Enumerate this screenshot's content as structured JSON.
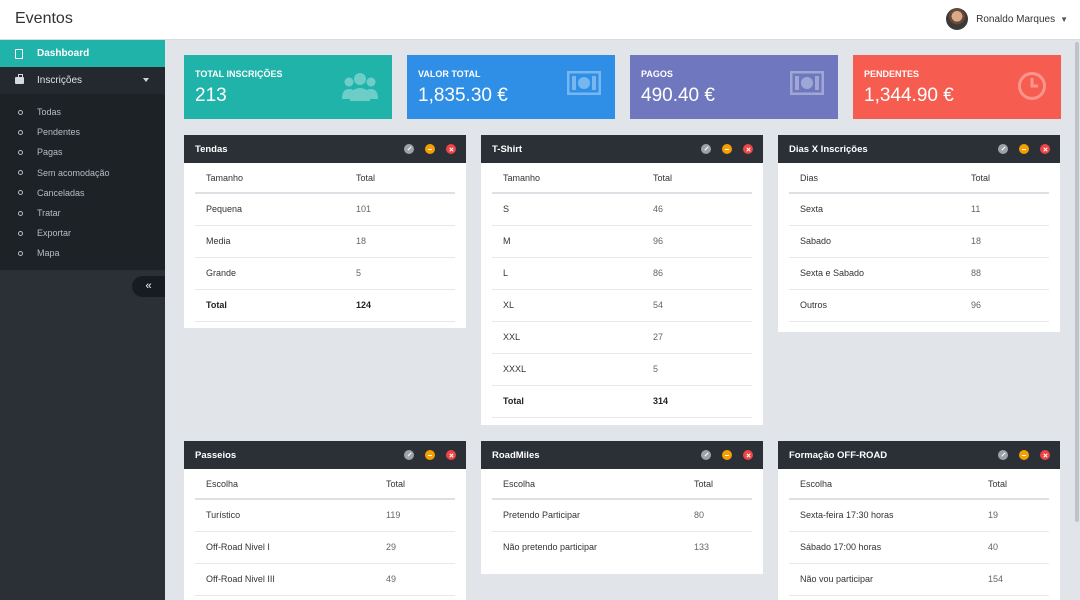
{
  "app": {
    "title": "Eventos"
  },
  "user": {
    "name": "Ronaldo Marques"
  },
  "sidebar": {
    "dashboard": "Dashboard",
    "inscricoes": "Inscrições",
    "sub": [
      "Todas",
      "Pendentes",
      "Pagas",
      "Sem acomodação",
      "Canceladas",
      "Tratar",
      "Exportar",
      "Mapa"
    ],
    "collapse": "«"
  },
  "cards": [
    {
      "label": "TOTAL INSCRIÇÕES",
      "value": "213",
      "icon": "users-icon",
      "color": "#1fb3aa"
    },
    {
      "label": "VALOR TOTAL",
      "value": "1,835.30 €",
      "icon": "money-icon",
      "color": "#2f8fe7"
    },
    {
      "label": "PAGOS",
      "value": "490.40 €",
      "icon": "money-icon",
      "color": "#6f78be"
    },
    {
      "label": "PENDENTES",
      "value": "1,344.90 €",
      "icon": "clock-icon",
      "color": "#f65d50"
    }
  ],
  "panels": {
    "tendas": {
      "title": "Tendas",
      "h1": "Tamanho",
      "h2": "Total",
      "rows": [
        [
          "Pequena",
          "101"
        ],
        [
          "Media",
          "18"
        ],
        [
          "Grande",
          "5"
        ]
      ],
      "total": [
        "Total",
        "124"
      ]
    },
    "tshirt": {
      "title": "T-Shirt",
      "h1": "Tamanho",
      "h2": "Total",
      "rows": [
        [
          "S",
          "46"
        ],
        [
          "M",
          "96"
        ],
        [
          "L",
          "86"
        ],
        [
          "XL",
          "54"
        ],
        [
          "XXL",
          "27"
        ],
        [
          "XXXL",
          "5"
        ]
      ],
      "total": [
        "Total",
        "314"
      ]
    },
    "dias": {
      "title": "Dias X Inscrições",
      "h1": "Dias",
      "h2": "Total",
      "rows": [
        [
          "Sexta",
          "11"
        ],
        [
          "Sabado",
          "18"
        ],
        [
          "Sexta e Sabado",
          "88"
        ],
        [
          "Outros",
          "96"
        ]
      ]
    },
    "passeios": {
      "title": "Passeios",
      "h1": "Escolha",
      "h2": "Total",
      "rows": [
        [
          "Turístico",
          "119"
        ],
        [
          "Off-Road Nivel I",
          "29"
        ],
        [
          "Off-Road Nivel III",
          "49"
        ]
      ]
    },
    "roadmiles": {
      "title": "RoadMiles",
      "h1": "Escolha",
      "h2": "Total",
      "rows": [
        [
          "Pretendo Participar",
          "80"
        ],
        [
          "Não pretendo participar",
          "133"
        ]
      ]
    },
    "formacao": {
      "title": "Formação OFF-ROAD",
      "h1": "Escolha",
      "h2": "Total",
      "rows": [
        [
          "Sexta-feira 17:30 horas",
          "19"
        ],
        [
          "Sábado 17:00 horas",
          "40"
        ],
        [
          "Não vou participar",
          "154"
        ]
      ]
    }
  }
}
